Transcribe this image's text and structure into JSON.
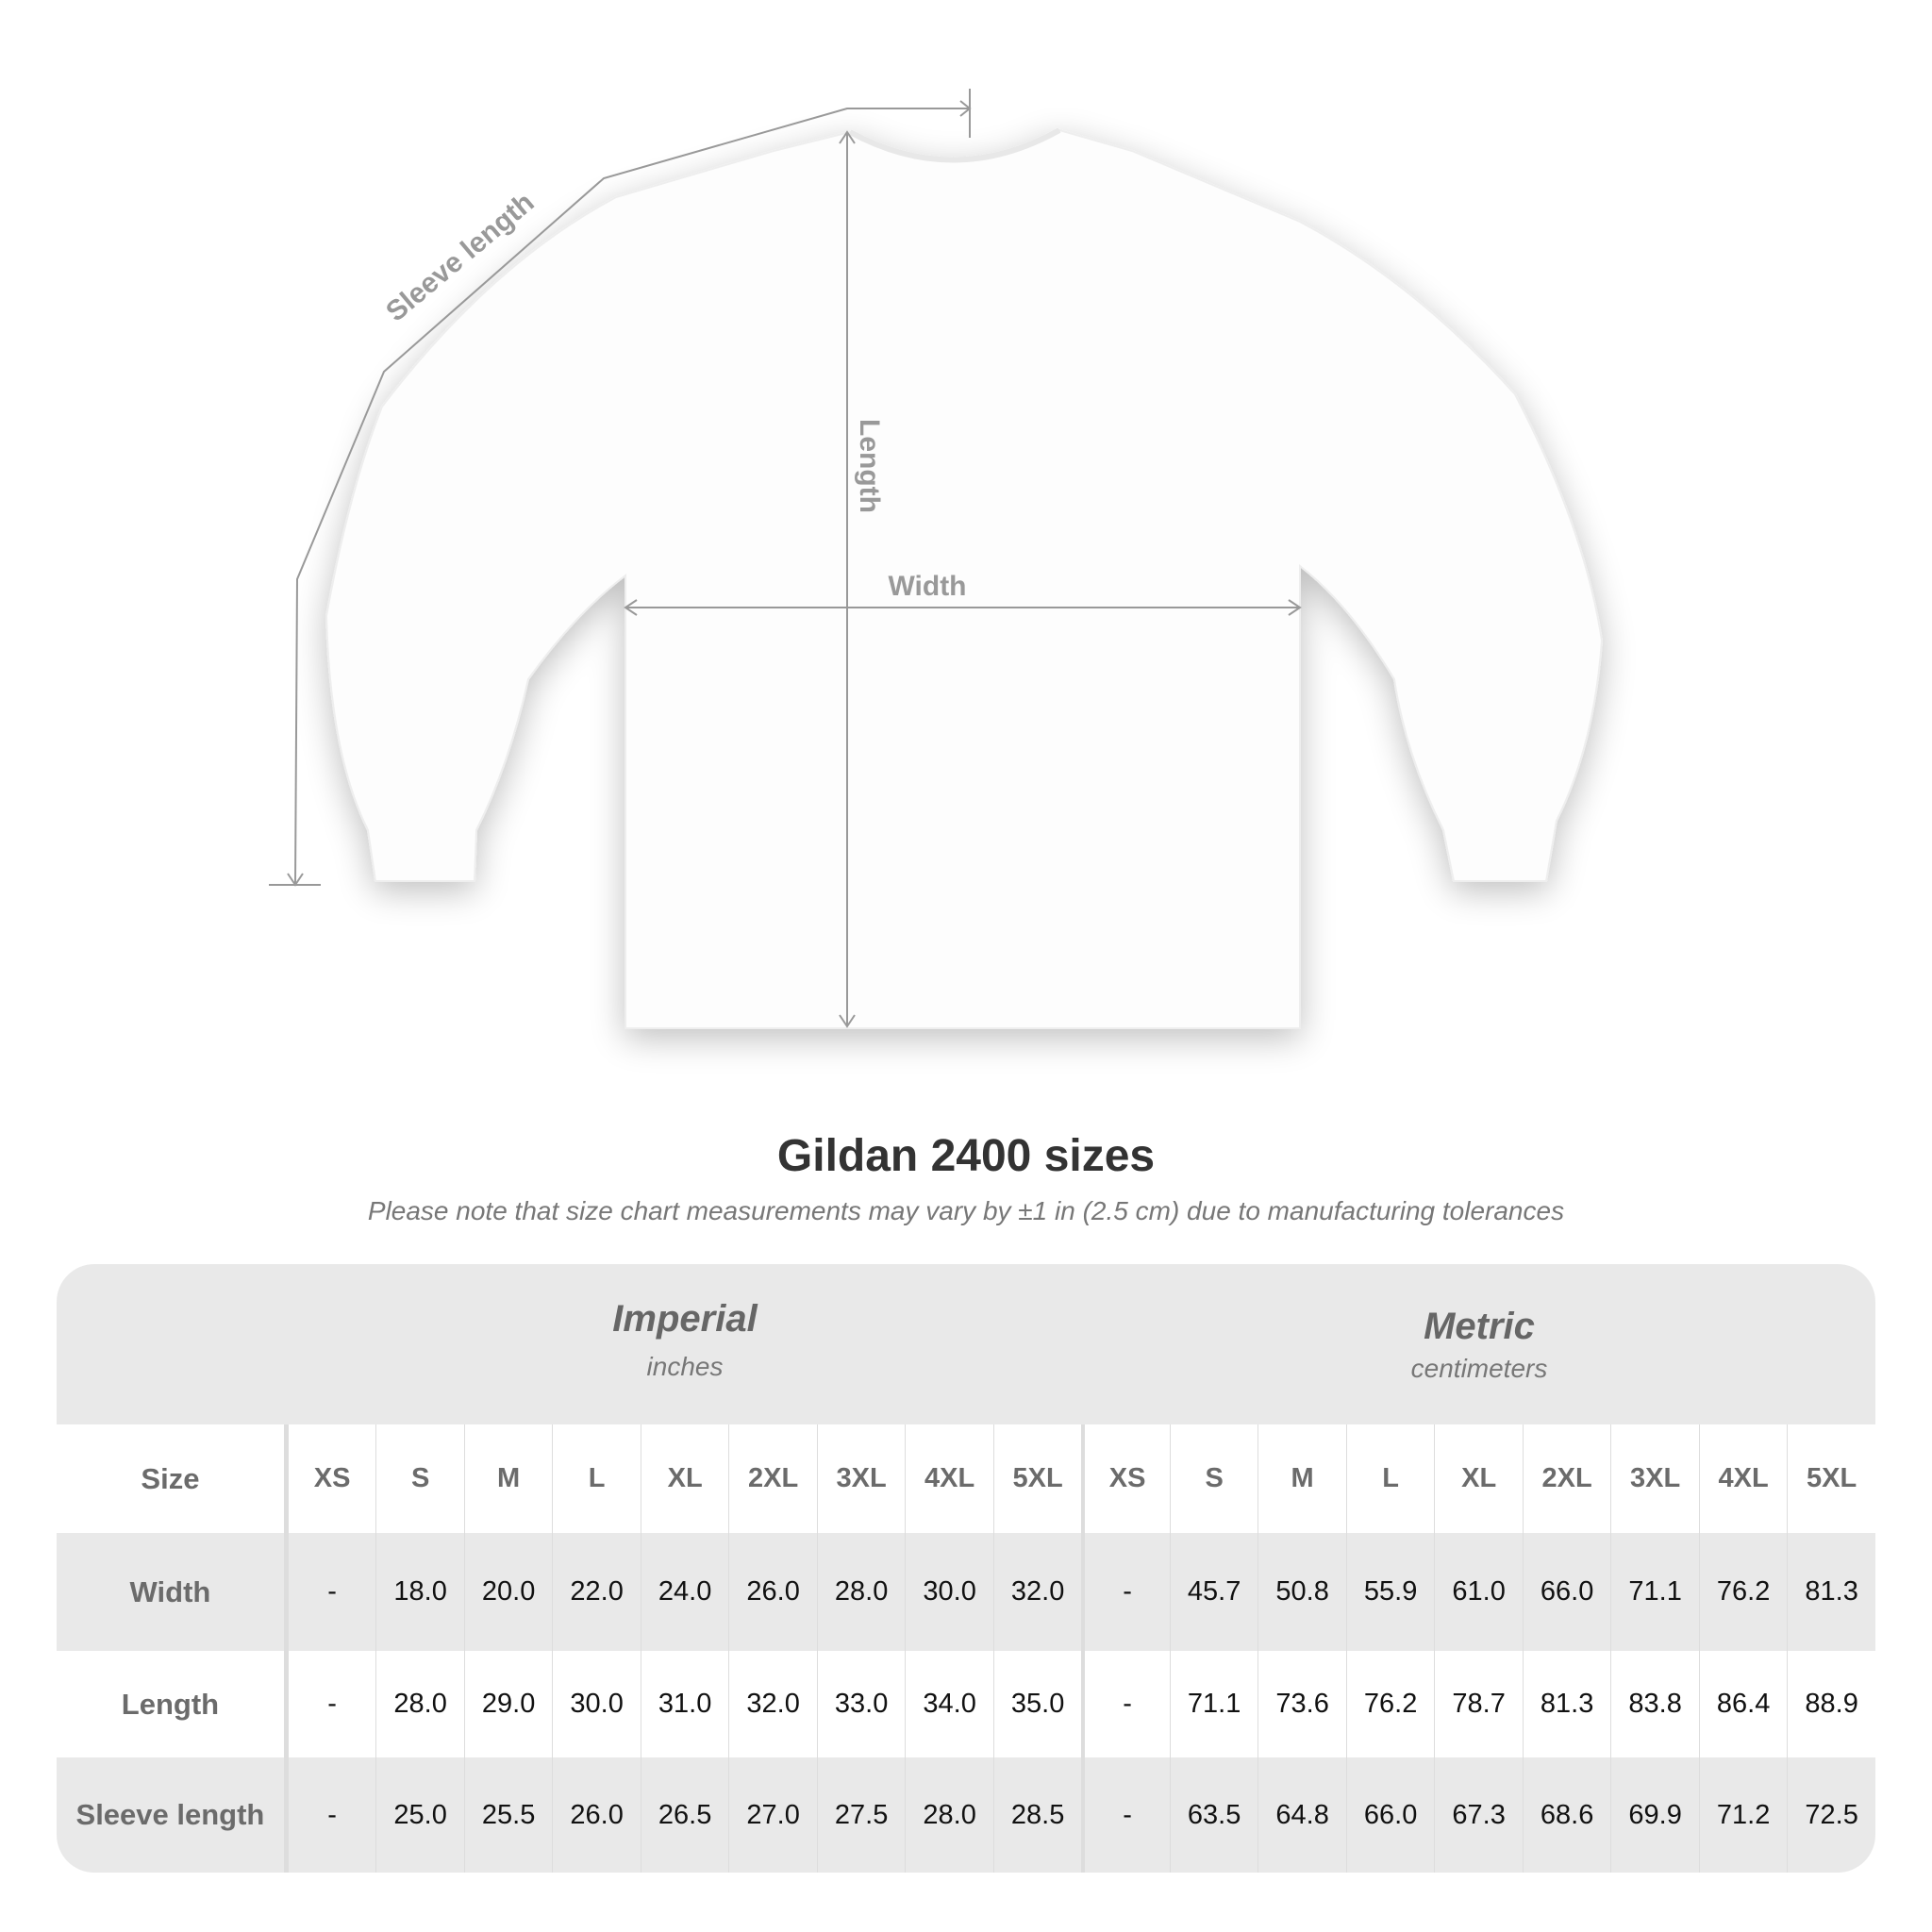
{
  "diagram": {
    "labels": {
      "sleeve": "Sleeve length",
      "length": "Length",
      "width": "Width"
    },
    "garment_color": "#ffffff",
    "line_color": "#999999"
  },
  "title": "Gildan 2400 sizes",
  "subtitle": "Please note that size chart measurements may vary by ±1 in (2.5 cm) due to manufacturing tolerances",
  "table": {
    "imperial": {
      "name": "Imperial",
      "unit": "inches"
    },
    "metric": {
      "name": "Metric",
      "unit": "centimeters"
    },
    "size_label": "Size",
    "sizes": [
      "XS",
      "S",
      "M",
      "L",
      "XL",
      "2XL",
      "3XL",
      "4XL",
      "5XL"
    ],
    "rows": [
      {
        "label": "Width",
        "imperial": [
          "-",
          "18.0",
          "20.0",
          "22.0",
          "24.0",
          "26.0",
          "28.0",
          "30.0",
          "32.0"
        ],
        "metric": [
          "-",
          "45.7",
          "50.8",
          "55.9",
          "61.0",
          "66.0",
          "71.1",
          "76.2",
          "81.3"
        ]
      },
      {
        "label": "Length",
        "imperial": [
          "-",
          "28.0",
          "29.0",
          "30.0",
          "31.0",
          "32.0",
          "33.0",
          "34.0",
          "35.0"
        ],
        "metric": [
          "-",
          "71.1",
          "73.6",
          "76.2",
          "78.7",
          "81.3",
          "83.8",
          "86.4",
          "88.9"
        ]
      },
      {
        "label": "Sleeve length",
        "imperial": [
          "-",
          "25.0",
          "25.5",
          "26.0",
          "26.5",
          "27.0",
          "27.5",
          "28.0",
          "28.5"
        ],
        "metric": [
          "-",
          "63.5",
          "64.8",
          "66.0",
          "67.3",
          "68.6",
          "69.9",
          "71.2",
          "72.5"
        ]
      }
    ]
  }
}
